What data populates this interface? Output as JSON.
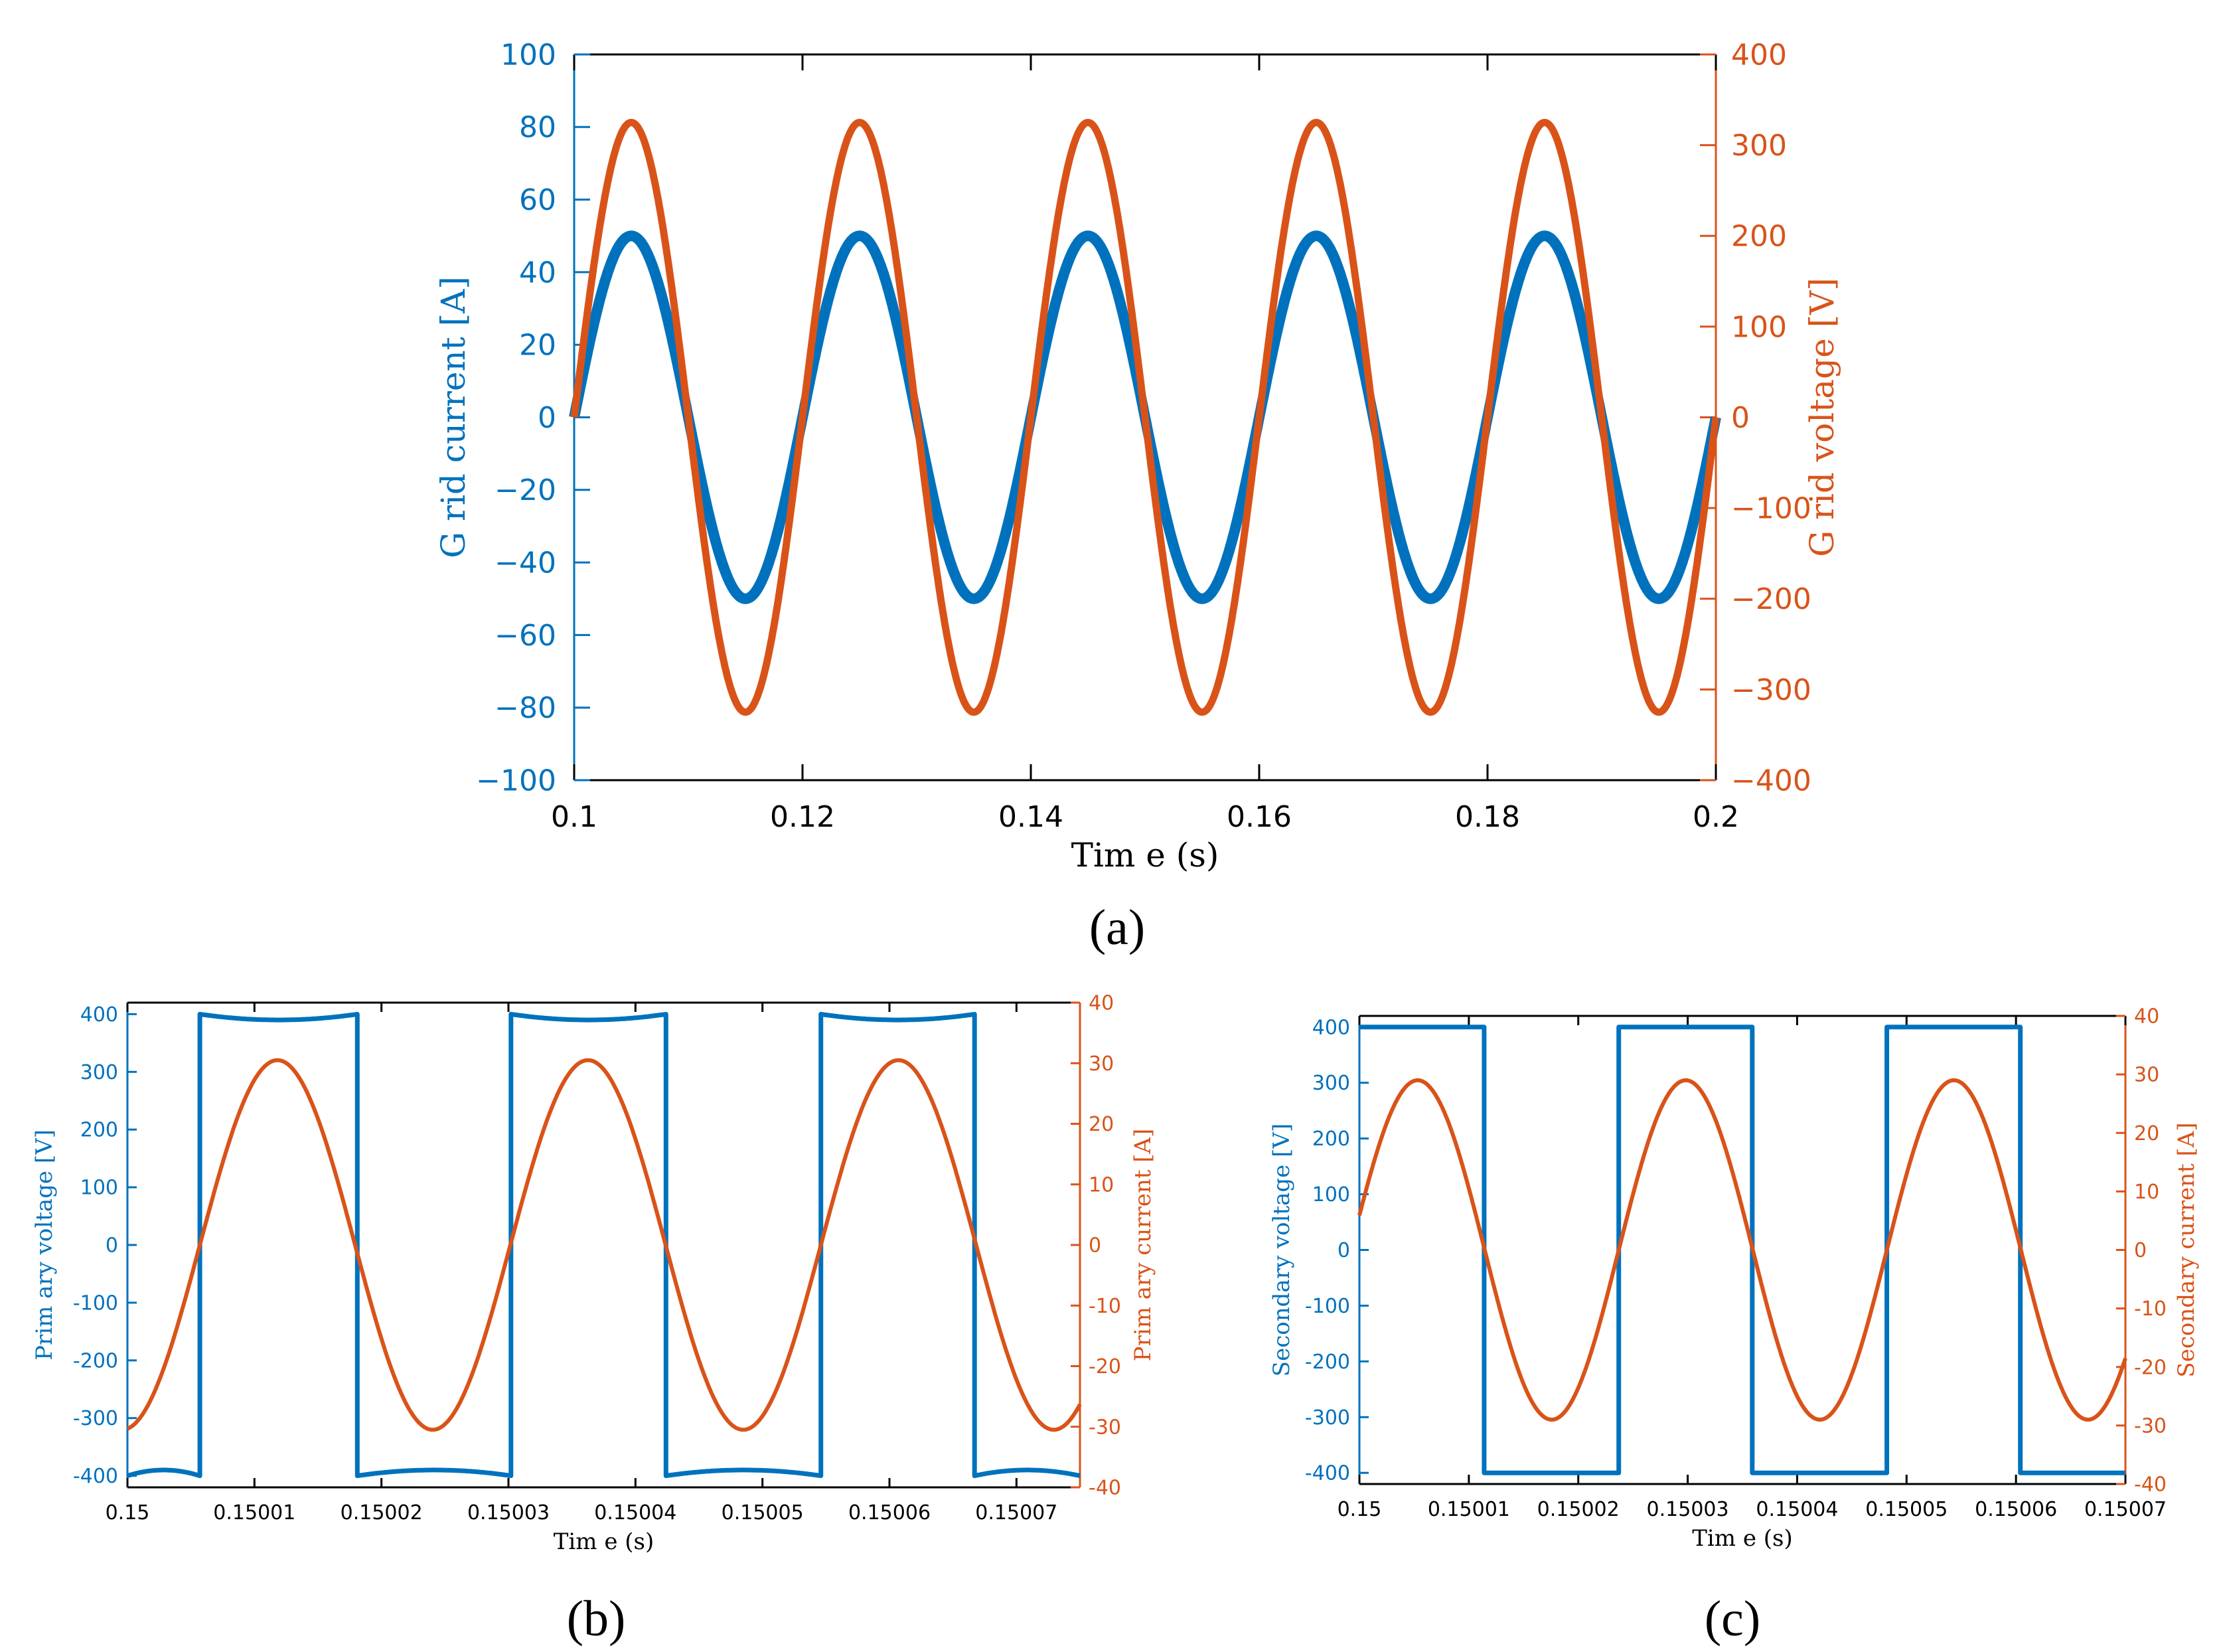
{
  "colors": {
    "blue": "#0072BD",
    "orange": "#D95319",
    "axis": "#000000",
    "bg": "#ffffff"
  },
  "chart_data": [
    {
      "id": "a",
      "type": "line",
      "caption": "(a)",
      "xlabel": "Tim e (s)",
      "ylabel_left": "G rid current [A]",
      "ylabel_right": "G rid voltage [V]",
      "xlim": [
        0.1,
        0.2
      ],
      "ylim_left": [
        -100,
        100
      ],
      "ylim_right": [
        -400,
        400
      ],
      "xticks": [
        "0.1",
        "0.12",
        "0.14",
        "0.16",
        "0.18",
        "0.2"
      ],
      "yticks_left": [
        "−100",
        "−80",
        "−60",
        "−40",
        "−20",
        "0",
        "20",
        "40",
        "60",
        "80",
        "100"
      ],
      "yticks_right": [
        "−400",
        "−300",
        "−200",
        "−100",
        "0",
        "100",
        "200",
        "300",
        "400"
      ],
      "series": [
        {
          "name": "Grid current",
          "axis": "left",
          "color": "blue",
          "waveform": "sine",
          "amplitude": 50,
          "frequency_hz": 50,
          "phase_deg": 0
        },
        {
          "name": "Grid voltage",
          "axis": "right",
          "color": "orange",
          "waveform": "sine",
          "amplitude": 325,
          "frequency_hz": 50,
          "phase_deg": 0
        }
      ]
    },
    {
      "id": "b",
      "type": "line",
      "caption": "(b)",
      "xlabel": "Tim e (s)",
      "ylabel_left": "Prim ary voltage [V]",
      "ylabel_right": "Prim ary current [A]",
      "xlim": [
        0.15,
        0.150075
      ],
      "ylim_left": [
        -420,
        420
      ],
      "ylim_right": [
        -40,
        40
      ],
      "xticks": [
        "0.15",
        "0.15001",
        "0.15002",
        "0.15003",
        "0.15004",
        "0.15005",
        "0.15006",
        "0.15007"
      ],
      "yticks_left": [
        "-400",
        "-300",
        "-200",
        "-100",
        "0",
        "100",
        "200",
        "300",
        "400"
      ],
      "yticks_right": [
        "-40",
        "-30",
        "-20",
        "-10",
        "0",
        "10",
        "20",
        "30",
        "40"
      ],
      "series": [
        {
          "name": "Primary voltage",
          "axis": "left",
          "color": "blue",
          "waveform": "square",
          "amplitude": 400,
          "sag": 10,
          "edges": [
            0.1500057,
            0.1500181,
            0.1500302,
            0.1500424,
            0.1500546,
            0.1500667
          ],
          "initial_sign": -1
        },
        {
          "name": "Primary current",
          "axis": "right",
          "color": "orange",
          "waveform": "sine",
          "amplitude": 30.5,
          "zero_crossing_up": 0.1500057,
          "period": 2.445e-05
        }
      ]
    },
    {
      "id": "c",
      "type": "line",
      "caption": "(c)",
      "xlabel": "Tim e (s)",
      "ylabel_left": "Secondary voltage [V]",
      "ylabel_right": "Secondary current [A]",
      "xlim": [
        0.15,
        0.15007
      ],
      "ylim_left": [
        -420,
        420
      ],
      "ylim_right": [
        -40,
        40
      ],
      "xticks": [
        "0.15",
        "0.15001",
        "0.15002",
        "0.15003",
        "0.15004",
        "0.15005",
        "0.15006",
        "0.15007"
      ],
      "yticks_left": [
        "-400",
        "-300",
        "-200",
        "-100",
        "0",
        "100",
        "200",
        "300",
        "400"
      ],
      "yticks_right": [
        "-40",
        "-30",
        "-20",
        "-10",
        "0",
        "10",
        "20",
        "30",
        "40"
      ],
      "series": [
        {
          "name": "Secondary voltage",
          "axis": "left",
          "color": "blue",
          "waveform": "square",
          "amplitude": 400,
          "sag": 0,
          "edges": [
            0.1500114,
            0.1500237,
            0.1500359,
            0.1500482,
            0.1500604
          ],
          "initial_sign": 1
        },
        {
          "name": "Secondary current",
          "axis": "right",
          "color": "orange",
          "waveform": "sine",
          "amplitude": 29,
          "zero_crossing_up": 0.1500237,
          "period": 2.45e-05
        }
      ]
    }
  ]
}
